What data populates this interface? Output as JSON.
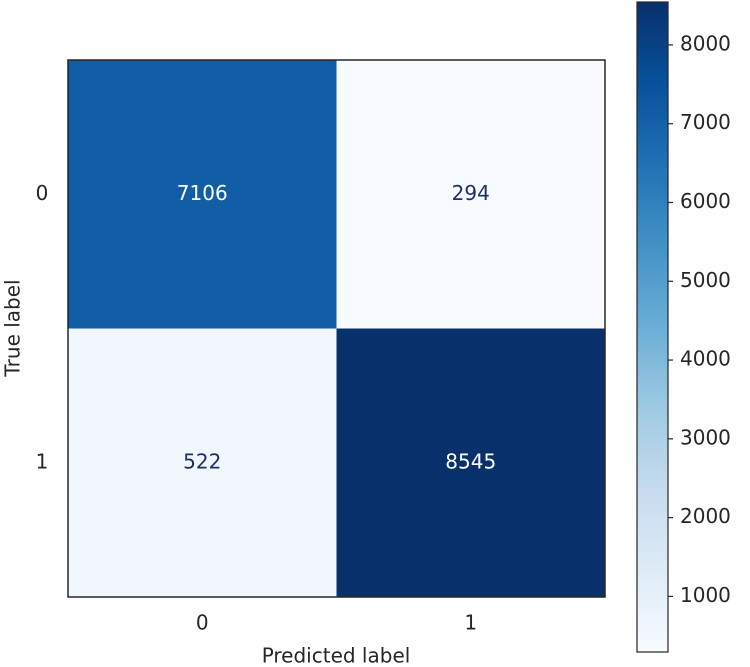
{
  "chart_data": {
    "type": "heatmap",
    "xlabel": "Predicted label",
    "ylabel": "True label",
    "x_categories": [
      "0",
      "1"
    ],
    "y_categories": [
      "0",
      "1"
    ],
    "values": [
      [
        7106,
        294
      ],
      [
        522,
        8545
      ]
    ],
    "colormap": "Blues",
    "zlim": [
      294,
      8545
    ],
    "zticks": [
      1000,
      2000,
      3000,
      4000,
      5000,
      6000,
      7000,
      8000
    ]
  }
}
